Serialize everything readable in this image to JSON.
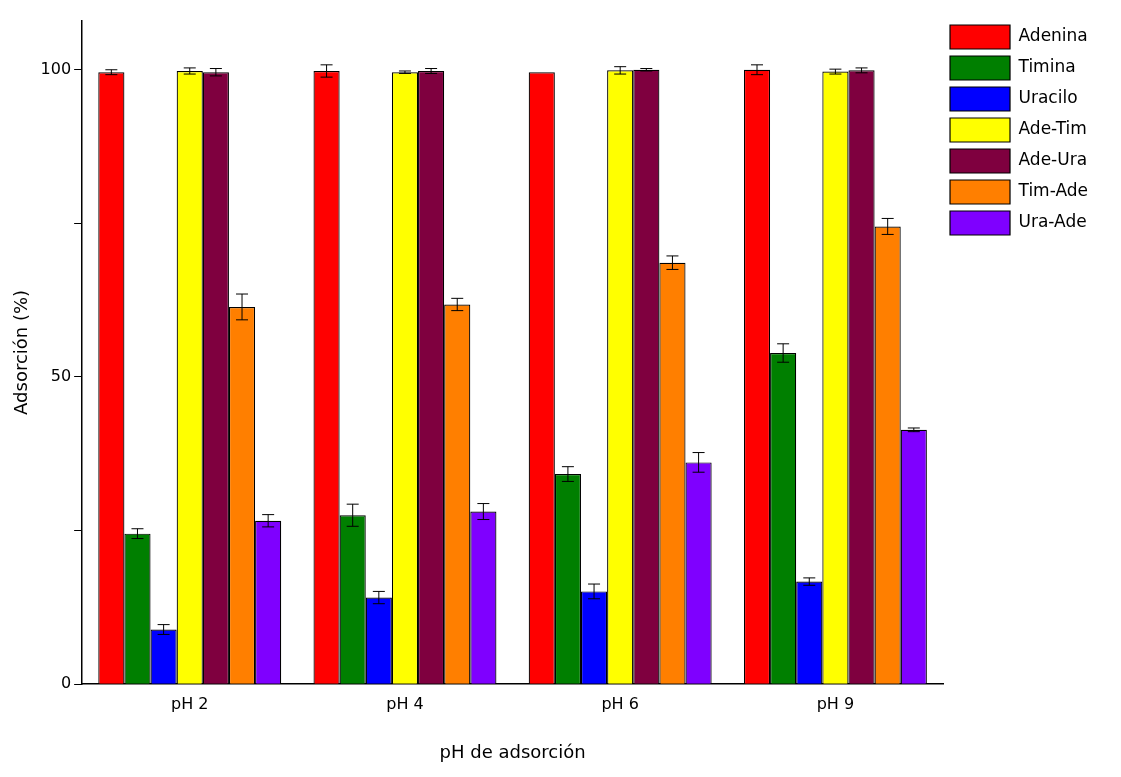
{
  "chart_data": {
    "type": "bar",
    "xlabel": "pH de adsorción",
    "ylabel": "Adsorción (%)",
    "categories": [
      "pH 2",
      "pH 4",
      "pH 6",
      "pH 9"
    ],
    "series": [
      {
        "name": "Adenina",
        "color": "#ff0000",
        "values": [
          99.6,
          99.8,
          99.6,
          100
        ],
        "errors": [
          0.4,
          1,
          null,
          0.8
        ]
      },
      {
        "name": "Timina",
        "color": "#007f00",
        "values": [
          24.5,
          27.5,
          34.2,
          53.9
        ],
        "errors": [
          0.8,
          1.8,
          1.2,
          1.5
        ]
      },
      {
        "name": "Uracilo",
        "color": "#0000ff",
        "values": [
          8.9,
          14.1,
          15.1,
          16.7
        ],
        "errors": [
          0.8,
          1,
          1.2,
          0.6
        ]
      },
      {
        "name": "Ade-Tim",
        "color": "#ffff00",
        "values": [
          99.8,
          99.6,
          99.9,
          99.7
        ],
        "errors": [
          0.5,
          0.2,
          0.6,
          0.4
        ]
      },
      {
        "name": "Ade-Ura",
        "color": "#7f003f",
        "values": [
          99.6,
          99.8,
          100,
          99.9
        ],
        "errors": [
          0.6,
          0.4,
          0.2,
          0.4
        ]
      },
      {
        "name": "Tim-Ade",
        "color": "#ff7f00",
        "values": [
          61.4,
          61.8,
          68.6,
          74.5
        ],
        "errors": [
          2.1,
          1,
          1.1,
          1.3
        ]
      },
      {
        "name": "Ura-Ade",
        "color": "#7f00ff",
        "values": [
          26.6,
          28.1,
          36.1,
          41.4
        ],
        "errors": [
          1,
          1.3,
          1.6,
          0.3
        ]
      }
    ],
    "ylim": [
      0,
      108
    ],
    "yticks": [
      0,
      {
        "value": 25,
        "label": null
      },
      50,
      {
        "value": 75,
        "label": null
      },
      100
    ],
    "grid": false,
    "legend": "top right"
  }
}
